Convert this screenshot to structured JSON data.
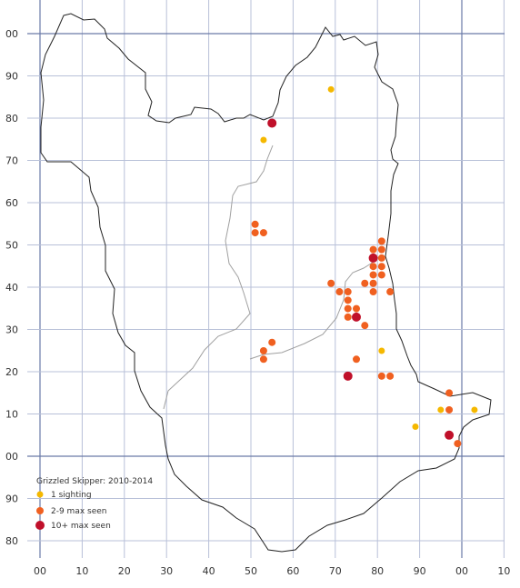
{
  "map": {
    "grid_color": "#b8c0d8",
    "axis_color": "#6a7aa8",
    "county_outline_color": "#222222",
    "district_outline_color": "#a0a0a0",
    "x_labels": [
      "00",
      "10",
      "20",
      "30",
      "40",
      "50",
      "60",
      "70",
      "80",
      "90",
      "00",
      "10"
    ],
    "y_labels": [
      "00",
      "90",
      "80",
      "70",
      "60",
      "50",
      "40",
      "30",
      "20",
      "10",
      "00",
      "90",
      "80"
    ],
    "legend": {
      "title": "Grizzled Skipper:  2010-2014",
      "items": [
        {
          "label": "1 sighting",
          "color": "#f5b800",
          "category": "one"
        },
        {
          "label": "2-9 max seen",
          "color": "#f06020",
          "category": "few"
        },
        {
          "label": "10+ max seen",
          "color": "#c0102a",
          "category": "many"
        }
      ]
    },
    "records": [
      {
        "x": 69,
        "y": 87,
        "category": "one"
      },
      {
        "x": 55,
        "y": 79,
        "category": "many"
      },
      {
        "x": 53,
        "y": 75,
        "category": "one"
      },
      {
        "x": 51,
        "y": 55,
        "category": "few"
      },
      {
        "x": 51,
        "y": 53,
        "category": "few"
      },
      {
        "x": 53,
        "y": 53,
        "category": "few"
      },
      {
        "x": 69,
        "y": 41,
        "category": "few"
      },
      {
        "x": 71,
        "y": 39,
        "category": "few"
      },
      {
        "x": 73,
        "y": 39,
        "category": "few"
      },
      {
        "x": 73,
        "y": 37,
        "category": "few"
      },
      {
        "x": 73,
        "y": 35,
        "category": "few"
      },
      {
        "x": 75,
        "y": 35,
        "category": "few"
      },
      {
        "x": 73,
        "y": 33,
        "category": "few"
      },
      {
        "x": 75,
        "y": 33,
        "category": "many"
      },
      {
        "x": 77,
        "y": 31,
        "category": "few"
      },
      {
        "x": 77,
        "y": 41,
        "category": "few"
      },
      {
        "x": 79,
        "y": 49,
        "category": "few"
      },
      {
        "x": 81,
        "y": 51,
        "category": "few"
      },
      {
        "x": 81,
        "y": 49,
        "category": "few"
      },
      {
        "x": 79,
        "y": 47,
        "category": "many"
      },
      {
        "x": 81,
        "y": 47,
        "category": "few"
      },
      {
        "x": 79,
        "y": 45,
        "category": "few"
      },
      {
        "x": 81,
        "y": 45,
        "category": "few"
      },
      {
        "x": 79,
        "y": 43,
        "category": "few"
      },
      {
        "x": 81,
        "y": 43,
        "category": "few"
      },
      {
        "x": 79,
        "y": 41,
        "category": "few"
      },
      {
        "x": 79,
        "y": 39,
        "category": "few"
      },
      {
        "x": 83,
        "y": 39,
        "category": "few"
      },
      {
        "x": 55,
        "y": 27,
        "category": "few"
      },
      {
        "x": 53,
        "y": 25,
        "category": "few"
      },
      {
        "x": 53,
        "y": 23,
        "category": "few"
      },
      {
        "x": 81,
        "y": 25,
        "category": "one"
      },
      {
        "x": 75,
        "y": 23,
        "category": "few"
      },
      {
        "x": 73,
        "y": 19,
        "category": "many"
      },
      {
        "x": 81,
        "y": 19,
        "category": "few"
      },
      {
        "x": 83,
        "y": 19,
        "category": "few"
      },
      {
        "x": 97,
        "y": 15,
        "category": "few"
      },
      {
        "x": 95,
        "y": 11,
        "category": "one"
      },
      {
        "x": 97,
        "y": 11,
        "category": "few"
      },
      {
        "x": 103,
        "y": 11,
        "category": "one"
      },
      {
        "x": 89,
        "y": 7,
        "category": "one"
      },
      {
        "x": 97,
        "y": 5,
        "category": "many"
      },
      {
        "x": 99,
        "y": 3,
        "category": "few"
      }
    ]
  }
}
